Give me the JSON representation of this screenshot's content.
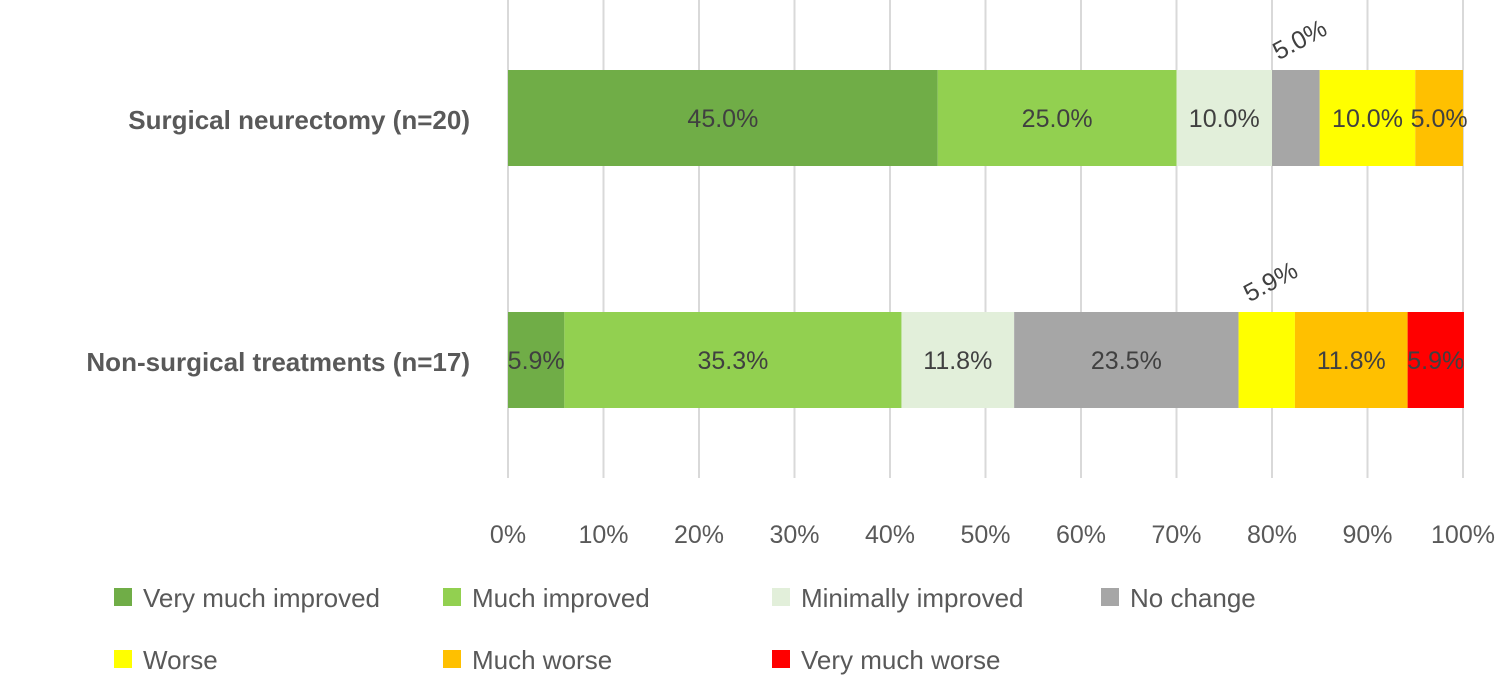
{
  "chart_data": {
    "type": "bar",
    "orientation": "horizontal",
    "stacked": "percent",
    "title": "",
    "xlabel": "",
    "ylabel": "",
    "xlim": [
      0,
      100
    ],
    "x_ticks": [
      "0%",
      "10%",
      "20%",
      "30%",
      "40%",
      "50%",
      "60%",
      "70%",
      "80%",
      "90%",
      "100%"
    ],
    "grid": "vertical",
    "legend_position": "bottom",
    "categories": [
      "Surgical neurectomy (n=20)",
      "Non-surgical treatments (n=17)"
    ],
    "series": [
      {
        "name": "Very much improved",
        "color": "#70AD47",
        "values": [
          45.0,
          5.9
        ],
        "labels": [
          "45.0%",
          "5.9%"
        ]
      },
      {
        "name": "Much improved",
        "color": "#92D050",
        "values": [
          25.0,
          35.3
        ],
        "labels": [
          "25.0%",
          "35.3%"
        ]
      },
      {
        "name": "Minimally improved",
        "color": "#E2EFDA",
        "values": [
          10.0,
          11.8
        ],
        "labels": [
          "10.0%",
          "11.8%"
        ]
      },
      {
        "name": "No change",
        "color": "#A6A6A6",
        "values": [
          5.0,
          23.5
        ],
        "labels": [
          "5.0%",
          "23.5%"
        ]
      },
      {
        "name": "Worse",
        "color": "#FFFF00",
        "values": [
          10.0,
          5.9
        ],
        "labels": [
          "10.0%",
          "5.9%"
        ]
      },
      {
        "name": "Much worse",
        "color": "#FFC000",
        "values": [
          5.0,
          11.8
        ],
        "labels": [
          "5.0%",
          "11.8%"
        ]
      },
      {
        "name": "Very much worse",
        "color": "#FF0000",
        "values": [
          0,
          5.9
        ],
        "labels": [
          "",
          "5.9%"
        ]
      }
    ],
    "rotated_labels": [
      {
        "category": 0,
        "series": 3
      },
      {
        "category": 1,
        "series": 4
      }
    ]
  }
}
